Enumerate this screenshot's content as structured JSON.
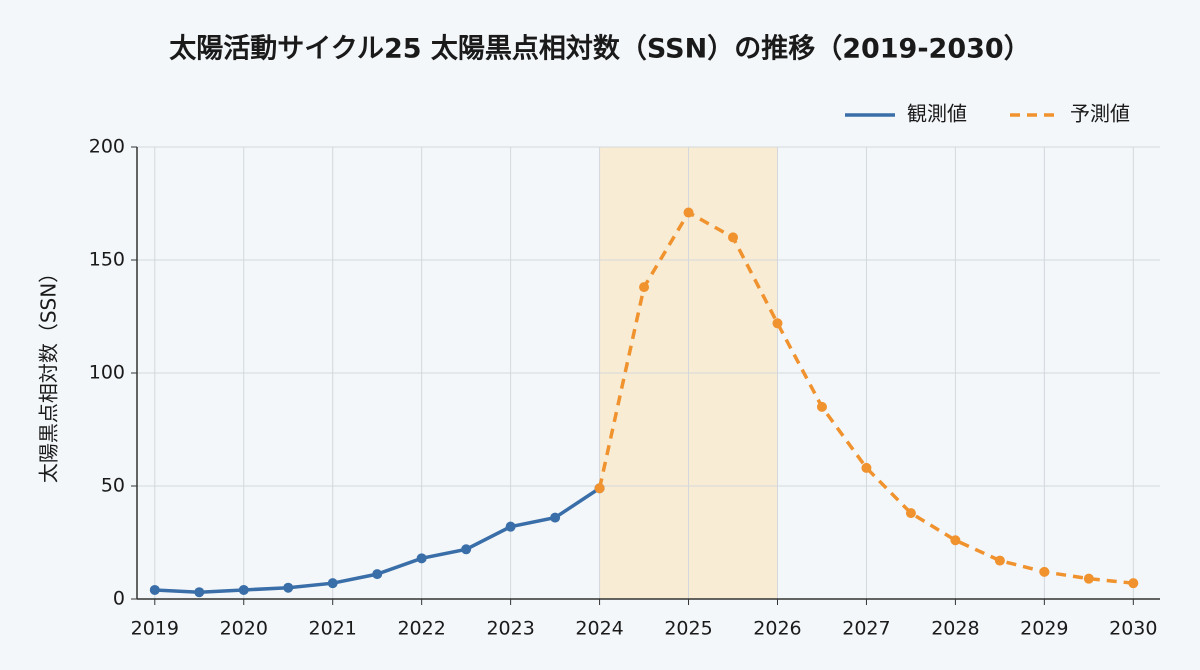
{
  "chart_data": {
    "type": "line",
    "title": "太陽活動サイクル25 太陽黒点相対数（SSN）の推移（2019-2030）",
    "y_label": "太陽黒点相対数（SSN）",
    "series": [
      {
        "name": "観測値",
        "color": "#3a6ea8",
        "style": "solid",
        "x": [
          2019,
          2019.5,
          2020,
          2020.5,
          2021,
          2021.5,
          2022,
          2022.5,
          2023,
          2023.5,
          2024
        ],
        "values": [
          4,
          3,
          4,
          5,
          7,
          11,
          18,
          22,
          32,
          36,
          49
        ]
      },
      {
        "name": "予測値",
        "color": "#f0922e",
        "style": "dashed",
        "x": [
          2024,
          2024.5,
          2025,
          2025.5,
          2026,
          2026.5,
          2027,
          2027.5,
          2028,
          2028.5,
          2029,
          2029.5,
          2030
        ],
        "values": [
          49,
          138,
          171,
          160,
          122,
          85,
          58,
          38,
          26,
          17,
          12,
          9,
          7
        ]
      }
    ],
    "shaded_xrange": [
      2024,
      2026
    ],
    "shade_color": "#f8ecd4",
    "xlim": [
      2018.8,
      2030.3
    ],
    "xticks": [
      2019,
      2020,
      2021,
      2022,
      2023,
      2024,
      2025,
      2026,
      2027,
      2028,
      2029,
      2030
    ],
    "ylim": [
      0,
      200
    ],
    "yticks": [
      0,
      50,
      100,
      150,
      200
    ],
    "grid": true,
    "legend": "top-right"
  }
}
